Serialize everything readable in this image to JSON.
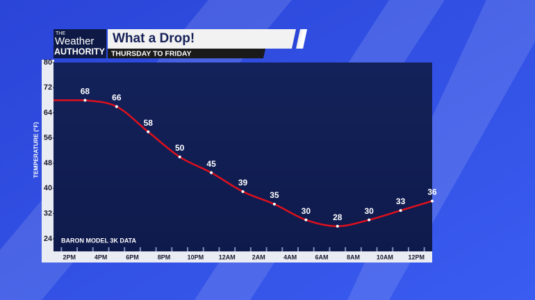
{
  "chart_data": {
    "type": "line",
    "logo": [
      "THE",
      "Weather",
      "AUTHORITY"
    ],
    "title": "What a Drop!",
    "subtitle": "THURSDAY TO FRIDAY",
    "y_label": "TEMPERATURE (°F)",
    "annotation": "BARON MODEL 3K DATA",
    "categories": [
      "2PM",
      "4PM",
      "6PM",
      "8PM",
      "10PM",
      "12AM",
      "2AM",
      "4AM",
      "6AM",
      "8AM",
      "10AM",
      "12PM"
    ],
    "series": [
      {
        "name": "Temperature",
        "color": "#e0101c",
        "values": [
          68,
          66,
          58,
          50,
          45,
          39,
          35,
          30,
          28,
          30,
          33,
          36
        ]
      }
    ],
    "ylim": [
      20,
      80
    ],
    "yticks": [
      24,
      32,
      40,
      48,
      56,
      64,
      72,
      80
    ]
  }
}
